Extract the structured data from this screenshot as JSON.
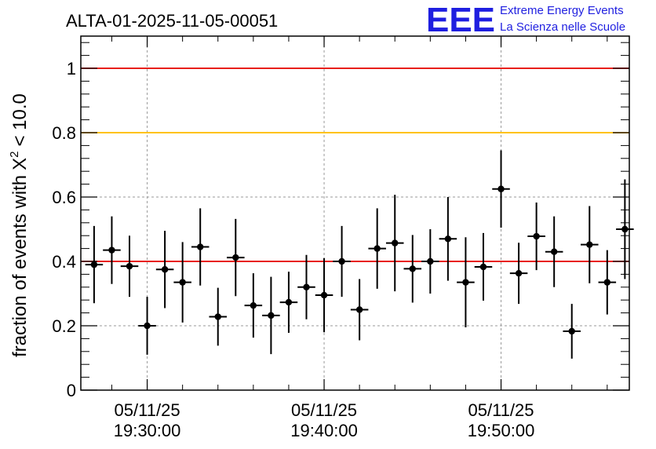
{
  "chart_data": {
    "type": "scatter",
    "title": "ALTA-01-2025-11-05-00051",
    "ylabel_prefix": "fraction of events with",
    "ylabel_symbol": "X",
    "ylabel_exponent": "2",
    "ylabel_suffix": "< 10.0",
    "logo": {
      "mark": "EEE",
      "line1": "Extreme Energy Events",
      "line2": "La Scienza nelle Scuole"
    },
    "x_range_minutes": [
      -3.75,
      27.25
    ],
    "ylim": [
      0,
      1.1
    ],
    "y_ticks": [
      "0",
      "0.2",
      "0.4",
      "0.6",
      "0.8",
      "1"
    ],
    "y_tick_values": [
      0,
      0.2,
      0.4,
      0.6,
      0.8,
      1.0
    ],
    "x_ticks": [
      {
        "minute": 0,
        "date": "05/11/25",
        "time": "19:30:00"
      },
      {
        "minute": 10,
        "date": "05/11/25",
        "time": "19:40:00"
      },
      {
        "minute": 20,
        "date": "05/11/25",
        "time": "19:50:00"
      }
    ],
    "grid": true,
    "reference_lines": [
      {
        "y": 1.0,
        "color": "#e8201b"
      },
      {
        "y": 0.8,
        "color": "#ffc20e"
      },
      {
        "y": 0.4,
        "color": "#e8201b"
      }
    ],
    "points": [
      {
        "x": -3.0,
        "y": 0.39,
        "err": 0.12
      },
      {
        "x": -2.0,
        "y": 0.435,
        "err": 0.105
      },
      {
        "x": -1.0,
        "y": 0.385,
        "err": 0.095
      },
      {
        "x": 0.0,
        "y": 0.2,
        "err": 0.09
      },
      {
        "x": 1.0,
        "y": 0.375,
        "err": 0.12
      },
      {
        "x": 2.0,
        "y": 0.335,
        "err": 0.125
      },
      {
        "x": 3.0,
        "y": 0.445,
        "err": 0.12
      },
      {
        "x": 4.0,
        "y": 0.228,
        "err": 0.09
      },
      {
        "x": 5.0,
        "y": 0.412,
        "err": 0.12
      },
      {
        "x": 6.0,
        "y": 0.263,
        "err": 0.1
      },
      {
        "x": 7.0,
        "y": 0.232,
        "err": 0.12
      },
      {
        "x": 8.0,
        "y": 0.273,
        "err": 0.095
      },
      {
        "x": 9.0,
        "y": 0.32,
        "err": 0.1
      },
      {
        "x": 10.0,
        "y": 0.295,
        "err": 0.115
      },
      {
        "x": 11.0,
        "y": 0.4,
        "err": 0.11
      },
      {
        "x": 12.0,
        "y": 0.25,
        "err": 0.095
      },
      {
        "x": 13.0,
        "y": 0.44,
        "err": 0.125
      },
      {
        "x": 14.0,
        "y": 0.457,
        "err": 0.15
      },
      {
        "x": 15.0,
        "y": 0.377,
        "err": 0.105
      },
      {
        "x": 16.0,
        "y": 0.4,
        "err": 0.1
      },
      {
        "x": 17.0,
        "y": 0.47,
        "err": 0.13
      },
      {
        "x": 18.0,
        "y": 0.335,
        "err": 0.14
      },
      {
        "x": 19.0,
        "y": 0.383,
        "err": 0.105
      },
      {
        "x": 20.0,
        "y": 0.625,
        "err": 0.12
      },
      {
        "x": 21.0,
        "y": 0.363,
        "err": 0.095
      },
      {
        "x": 22.0,
        "y": 0.478,
        "err": 0.105
      },
      {
        "x": 23.0,
        "y": 0.43,
        "err": 0.11
      },
      {
        "x": 24.0,
        "y": 0.183,
        "err": 0.085
      },
      {
        "x": 25.0,
        "y": 0.452,
        "err": 0.12
      },
      {
        "x": 26.0,
        "y": 0.335,
        "err": 0.1
      },
      {
        "x": 27.0,
        "y": 0.5,
        "err": 0.155
      }
    ]
  }
}
